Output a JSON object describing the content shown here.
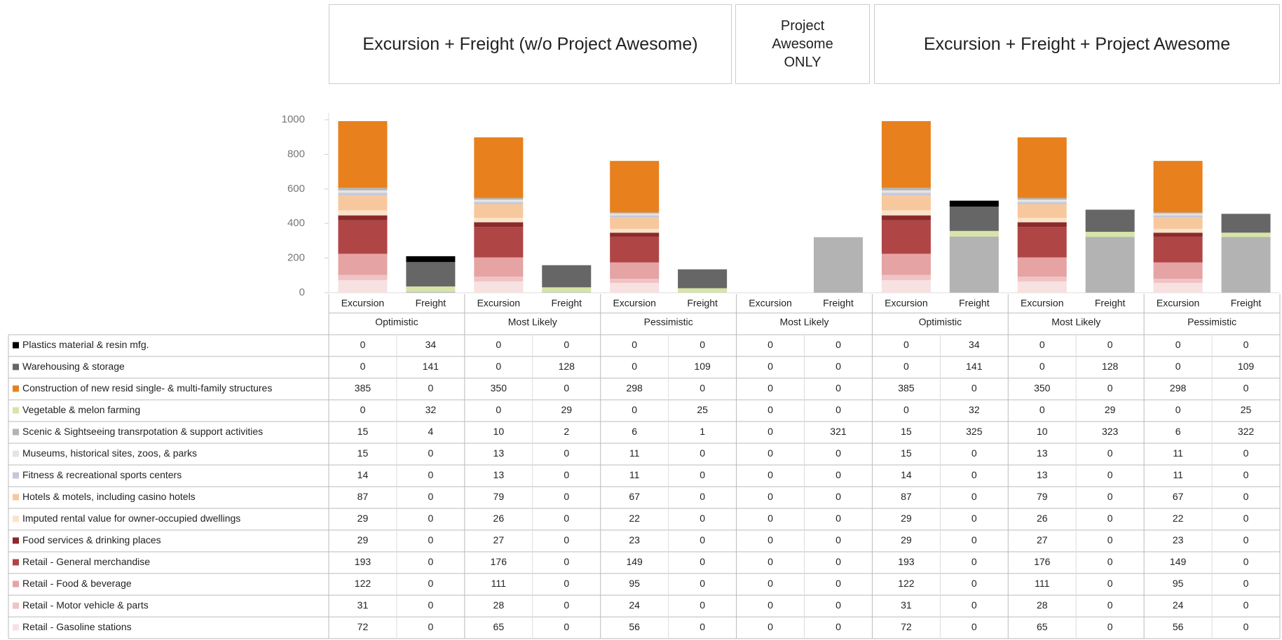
{
  "headers": [
    "Excursion + Freight (w/o Project Awesome)",
    "Project Awesome ONLY",
    "Excursion + Freight + Project Awesome"
  ],
  "chart_data": {
    "type": "stacked_bar",
    "categories": [
      "Excursion",
      "Freight",
      "Excursion",
      "Freight",
      "Excursion",
      "Freight",
      "Excursion",
      "Freight",
      "Excursion",
      "Freight",
      "Excursion",
      "Freight",
      "Excursion",
      "Freight"
    ],
    "groups": [
      "Optimistic",
      "Most Likely",
      "Pessimistic",
      "Most Likely",
      "Optimistic",
      "Most Likely",
      "Pessimistic"
    ],
    "ylim": [
      0,
      1000
    ],
    "yticks": [
      0,
      200,
      400,
      600,
      800,
      1000
    ],
    "series": [
      {
        "name": "Plastics material & resin mfg.",
        "color": "#000000",
        "values": [
          0,
          34,
          0,
          0,
          0,
          0,
          0,
          0,
          0,
          34,
          0,
          0,
          0,
          0
        ]
      },
      {
        "name": "Warehousing & storage",
        "color": "#666666",
        "values": [
          0,
          141,
          0,
          128,
          0,
          109,
          0,
          0,
          0,
          141,
          0,
          128,
          0,
          109
        ]
      },
      {
        "name": "Construction of new resid single- & multi-family structures",
        "color": "#e8801e",
        "values": [
          385,
          0,
          350,
          0,
          298,
          0,
          0,
          0,
          385,
          0,
          350,
          0,
          298,
          0
        ]
      },
      {
        "name": "Vegetable & melon farming",
        "color": "#d6e4a8",
        "values": [
          0,
          32,
          0,
          29,
          0,
          25,
          0,
          0,
          0,
          32,
          0,
          29,
          0,
          25
        ]
      },
      {
        "name": "Scenic & Sightseeing transrpotation & support activities",
        "color": "#b3b3b3",
        "values": [
          15,
          4,
          10,
          2,
          6,
          1,
          0,
          321,
          15,
          325,
          10,
          323,
          6,
          322
        ]
      },
      {
        "name": "Museums, historical sites, zoos, & parks",
        "color": "#e4e4e4",
        "values": [
          15,
          0,
          13,
          0,
          11,
          0,
          0,
          0,
          15,
          0,
          13,
          0,
          11,
          0
        ]
      },
      {
        "name": "Fitness & recreational sports centers",
        "color": "#c6c8d8",
        "values": [
          14,
          0,
          13,
          0,
          11,
          0,
          0,
          0,
          14,
          0,
          13,
          0,
          11,
          0
        ]
      },
      {
        "name": "Hotels & motels, including casino hotels",
        "color": "#f7c89e",
        "values": [
          87,
          0,
          79,
          0,
          67,
          0,
          0,
          0,
          87,
          0,
          79,
          0,
          67,
          0
        ]
      },
      {
        "name": "Imputed rental value for owner-occupied dwellings",
        "color": "#fbe3c9",
        "values": [
          29,
          0,
          26,
          0,
          22,
          0,
          0,
          0,
          29,
          0,
          26,
          0,
          22,
          0
        ]
      },
      {
        "name": "Food services & drinking places",
        "color": "#8b2a2a",
        "values": [
          29,
          0,
          27,
          0,
          23,
          0,
          0,
          0,
          29,
          0,
          27,
          0,
          23,
          0
        ]
      },
      {
        "name": "Retail - General merchandise",
        "color": "#b04545",
        "values": [
          193,
          0,
          176,
          0,
          149,
          0,
          0,
          0,
          193,
          0,
          176,
          0,
          149,
          0
        ]
      },
      {
        "name": "Retail - Food & beverage",
        "color": "#e6a3a3",
        "values": [
          122,
          0,
          111,
          0,
          95,
          0,
          0,
          0,
          122,
          0,
          111,
          0,
          95,
          0
        ]
      },
      {
        "name": "Retail - Motor vehicle & parts",
        "color": "#f0c4c4",
        "values": [
          31,
          0,
          28,
          0,
          24,
          0,
          0,
          0,
          31,
          0,
          28,
          0,
          24,
          0
        ]
      },
      {
        "name": "Retail - Gasoline stations",
        "color": "#f7e1e1",
        "values": [
          72,
          0,
          65,
          0,
          56,
          0,
          0,
          0,
          72,
          0,
          65,
          0,
          56,
          0
        ]
      }
    ]
  }
}
